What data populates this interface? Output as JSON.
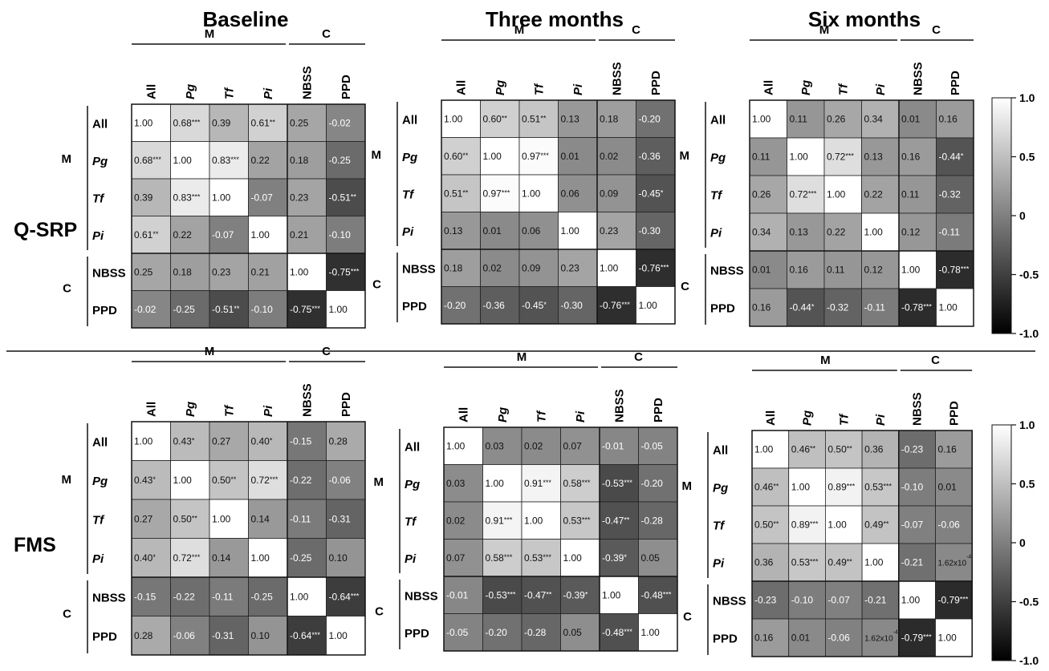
{
  "titles": [
    "Baseline",
    "Three months",
    "Six months"
  ],
  "row_labels": [
    "Q-SRP",
    "FMS"
  ],
  "variables": [
    "All",
    "Pg",
    "Tf",
    "Pi",
    "NBSS",
    "PPD"
  ],
  "italic_variables": [
    "Pg",
    "Tf",
    "Pi"
  ],
  "group_labels": {
    "microbiome": "M",
    "clinical": "C"
  },
  "colorbar": {
    "ticks": [
      "1.0",
      "0.5",
      "0",
      "-0.5",
      "-1.0"
    ],
    "range": [
      -1.0,
      1.0
    ],
    "colors": {
      "low": "#000000",
      "high": "#ffffff"
    }
  },
  "chart_data": [
    {
      "type": "heatmap",
      "group": "Q-SRP",
      "title": "Baseline",
      "rows": [
        "All",
        "Pg",
        "Tf",
        "Pi",
        "NBSS",
        "PPD"
      ],
      "columns": [
        "All",
        "Pg",
        "Tf",
        "Pi",
        "NBSS",
        "PPD"
      ],
      "values": [
        [
          1.0,
          0.68,
          0.39,
          0.61,
          0.25,
          -0.02
        ],
        [
          0.68,
          1.0,
          0.83,
          0.22,
          0.18,
          -0.25
        ],
        [
          0.39,
          0.83,
          1.0,
          -0.07,
          0.23,
          -0.51
        ],
        [
          0.61,
          0.22,
          -0.07,
          1.0,
          0.21,
          -0.1
        ],
        [
          0.25,
          0.18,
          0.23,
          0.21,
          1.0,
          -0.75
        ],
        [
          -0.02,
          -0.25,
          -0.51,
          -0.1,
          -0.75,
          1.0
        ]
      ],
      "labels": [
        [
          "1.00",
          "0.68",
          "0.39",
          "0.61",
          "0.25",
          "-0.02"
        ],
        [
          "0.68",
          "1.00",
          "0.83",
          "0.22",
          "0.18",
          "-0.25"
        ],
        [
          "0.39",
          "0.83",
          "1.00",
          "-0.07",
          "0.23",
          "-0.51"
        ],
        [
          "0.61",
          "0.22",
          "-0.07",
          "1.00",
          "0.21",
          "-0.10"
        ],
        [
          "0.25",
          "0.18",
          "0.23",
          "0.21",
          "1.00",
          "-0.75"
        ],
        [
          "-0.02",
          "-0.25",
          "-0.51",
          "-0.10",
          "-0.75",
          "1.00"
        ]
      ],
      "stars": [
        [
          "",
          "***",
          "",
          "**",
          "",
          ""
        ],
        [
          "***",
          "",
          "***",
          "",
          "",
          ""
        ],
        [
          "",
          "***",
          "",
          "",
          "",
          "**"
        ],
        [
          "**",
          "",
          "",
          "",
          "",
          ""
        ],
        [
          "",
          "",
          "",
          "",
          "",
          "***"
        ],
        [
          "",
          "",
          "**",
          "",
          "***",
          ""
        ]
      ]
    },
    {
      "type": "heatmap",
      "group": "Q-SRP",
      "title": "Three months",
      "rows": [
        "All",
        "Pg",
        "Tf",
        "Pi",
        "NBSS",
        "PPD"
      ],
      "columns": [
        "All",
        "Pg",
        "Tf",
        "Pi",
        "NBSS",
        "PPD"
      ],
      "values": [
        [
          1.0,
          0.6,
          0.51,
          0.13,
          0.18,
          -0.2
        ],
        [
          0.6,
          1.0,
          0.97,
          0.01,
          0.02,
          -0.36
        ],
        [
          0.51,
          0.97,
          1.0,
          0.06,
          0.09,
          -0.45
        ],
        [
          0.13,
          0.01,
          0.06,
          1.0,
          0.23,
          -0.3
        ],
        [
          0.18,
          0.02,
          0.09,
          0.23,
          1.0,
          -0.76
        ],
        [
          -0.2,
          -0.36,
          -0.45,
          -0.3,
          -0.76,
          1.0
        ]
      ],
      "labels": [
        [
          "1.00",
          "0.60",
          "0.51",
          "0.13",
          "0.18",
          "-0.20"
        ],
        [
          "0.60",
          "1.00",
          "0.97",
          "0.01",
          "0.02",
          "-0.36"
        ],
        [
          "0.51",
          "0.97",
          "1.00",
          "0.06",
          "0.09",
          "-0.45"
        ],
        [
          "0.13",
          "0.01",
          "0.06",
          "1.00",
          "0.23",
          "-0.30"
        ],
        [
          "0.18",
          "0.02",
          "0.09",
          "0.23",
          "1.00",
          "-0.76"
        ],
        [
          "-0.20",
          "-0.36",
          "-0.45",
          "-0.30",
          "-0.76",
          "1.00"
        ]
      ],
      "stars": [
        [
          "",
          "**",
          "**",
          "",
          "",
          ""
        ],
        [
          "**",
          "",
          "***",
          "",
          "",
          ""
        ],
        [
          "**",
          "***",
          "",
          "",
          "",
          "*"
        ],
        [
          "",
          "",
          "",
          "",
          "",
          ""
        ],
        [
          "",
          "",
          "",
          "",
          "",
          "***"
        ],
        [
          "",
          "",
          "*",
          "",
          "***",
          ""
        ]
      ]
    },
    {
      "type": "heatmap",
      "group": "Q-SRP",
      "title": "Six months",
      "rows": [
        "All",
        "Pg",
        "Tf",
        "Pi",
        "NBSS",
        "PPD"
      ],
      "columns": [
        "All",
        "Pg",
        "Tf",
        "Pi",
        "NBSS",
        "PPD"
      ],
      "values": [
        [
          1.0,
          0.11,
          0.26,
          0.34,
          0.01,
          0.16
        ],
        [
          0.11,
          1.0,
          0.72,
          0.13,
          0.16,
          -0.44
        ],
        [
          0.26,
          0.72,
          1.0,
          0.22,
          0.11,
          -0.32
        ],
        [
          0.34,
          0.13,
          0.22,
          1.0,
          0.12,
          -0.11
        ],
        [
          0.01,
          0.16,
          0.11,
          0.12,
          1.0,
          -0.78
        ],
        [
          0.16,
          -0.44,
          -0.32,
          -0.11,
          -0.78,
          1.0
        ]
      ],
      "labels": [
        [
          "1.00",
          "0.11",
          "0.26",
          "0.34",
          "0.01",
          "0.16"
        ],
        [
          "0.11",
          "1.00",
          "0.72",
          "0.13",
          "0.16",
          "-0.44"
        ],
        [
          "0.26",
          "0.72",
          "1.00",
          "0.22",
          "0.11",
          "-0.32"
        ],
        [
          "0.34",
          "0.13",
          "0.22",
          "1.00",
          "0.12",
          "-0.11"
        ],
        [
          "0.01",
          "0.16",
          "0.11",
          "0.12",
          "1.00",
          "-0.78"
        ],
        [
          "0.16",
          "-0.44",
          "-0.32",
          "-0.11",
          "-0.78",
          "1.00"
        ]
      ],
      "stars": [
        [
          "",
          "",
          "",
          "",
          "",
          ""
        ],
        [
          "",
          "",
          "***",
          "",
          "",
          "*"
        ],
        [
          "",
          "***",
          "",
          "",
          "",
          ""
        ],
        [
          "",
          "",
          "",
          "",
          "",
          ""
        ],
        [
          "",
          "",
          "",
          "",
          "",
          "***"
        ],
        [
          "",
          "*",
          "",
          "",
          "***",
          ""
        ]
      ]
    },
    {
      "type": "heatmap",
      "group": "FMS",
      "title": "Baseline",
      "rows": [
        "All",
        "Pg",
        "Tf",
        "Pi",
        "NBSS",
        "PPD"
      ],
      "columns": [
        "All",
        "Pg",
        "Tf",
        "Pi",
        "NBSS",
        "PPD"
      ],
      "values": [
        [
          1.0,
          0.43,
          0.27,
          0.4,
          -0.15,
          0.28
        ],
        [
          0.43,
          1.0,
          0.5,
          0.72,
          -0.22,
          -0.06
        ],
        [
          0.27,
          0.5,
          1.0,
          0.14,
          -0.11,
          -0.31
        ],
        [
          0.4,
          0.72,
          0.14,
          1.0,
          -0.25,
          0.1
        ],
        [
          -0.15,
          -0.22,
          -0.11,
          -0.25,
          1.0,
          -0.64
        ],
        [
          0.28,
          -0.06,
          -0.31,
          0.1,
          -0.64,
          1.0
        ]
      ],
      "labels": [
        [
          "1.00",
          "0.43",
          "0.27",
          "0.40",
          "-0.15",
          "0.28"
        ],
        [
          "0.43",
          "1.00",
          "0.50",
          "0.72",
          "-0.22",
          "-0.06"
        ],
        [
          "0.27",
          "0.50",
          "1.00",
          "0.14",
          "-0.11",
          "-0.31"
        ],
        [
          "0.40",
          "0.72",
          "0.14",
          "1.00",
          "-0.25",
          "0.10"
        ],
        [
          "-0.15",
          "-0.22",
          "-0.11",
          "-0.25",
          "1.00",
          "-0.64"
        ],
        [
          "0.28",
          "-0.06",
          "-0.31",
          "0.10",
          "-0.64",
          "1.00"
        ]
      ],
      "stars": [
        [
          "",
          "*",
          "",
          "*",
          "",
          ""
        ],
        [
          "*",
          "",
          "**",
          "***",
          "",
          ""
        ],
        [
          "",
          "**",
          "",
          "",
          "",
          ""
        ],
        [
          "*",
          "***",
          "",
          "",
          "",
          ""
        ],
        [
          "",
          "",
          "",
          "",
          "",
          "***"
        ],
        [
          "",
          "",
          "",
          "",
          "***",
          ""
        ]
      ]
    },
    {
      "type": "heatmap",
      "group": "FMS",
      "title": "Three months",
      "rows": [
        "All",
        "Pg",
        "Tf",
        "Pi",
        "NBSS",
        "PPD"
      ],
      "columns": [
        "All",
        "Pg",
        "Tf",
        "Pi",
        "NBSS",
        "PPD"
      ],
      "values": [
        [
          1.0,
          0.03,
          0.02,
          0.07,
          -0.01,
          -0.05
        ],
        [
          0.03,
          1.0,
          0.91,
          0.58,
          -0.53,
          -0.2
        ],
        [
          0.02,
          0.91,
          1.0,
          0.53,
          -0.47,
          -0.28
        ],
        [
          0.07,
          0.58,
          0.53,
          1.0,
          -0.39,
          0.05
        ],
        [
          -0.01,
          -0.53,
          -0.47,
          -0.39,
          1.0,
          -0.48
        ],
        [
          -0.05,
          -0.2,
          -0.28,
          0.05,
          -0.48,
          1.0
        ]
      ],
      "labels": [
        [
          "1.00",
          "0.03",
          "0.02",
          "0.07",
          "-0.01",
          "-0.05"
        ],
        [
          "0.03",
          "1.00",
          "0.91",
          "0.58",
          "-0.53",
          "-0.20"
        ],
        [
          "0.02",
          "0.91",
          "1.00",
          "0.53",
          "-0.47",
          "-0.28"
        ],
        [
          "0.07",
          "0.58",
          "0.53",
          "1.00",
          "-0.39",
          "0.05"
        ],
        [
          "-0.01",
          "-0.53",
          "-0.47",
          "-0.39",
          "1.00",
          "-0.48"
        ],
        [
          "-0.05",
          "-0.20",
          "-0.28",
          "0.05",
          "-0.48",
          "1.00"
        ]
      ],
      "stars": [
        [
          "",
          "",
          "",
          "",
          "",
          ""
        ],
        [
          "",
          "",
          "***",
          "***",
          "***",
          ""
        ],
        [
          "",
          "***",
          "",
          "***",
          "**",
          ""
        ],
        [
          "",
          "***",
          "***",
          "",
          "*",
          ""
        ],
        [
          "",
          "***",
          "**",
          "*",
          "",
          "***"
        ],
        [
          "",
          "",
          "",
          "",
          "***",
          ""
        ]
      ]
    },
    {
      "type": "heatmap",
      "group": "FMS",
      "title": "Six months",
      "rows": [
        "All",
        "Pg",
        "Tf",
        "Pi",
        "NBSS",
        "PPD"
      ],
      "columns": [
        "All",
        "Pg",
        "Tf",
        "Pi",
        "NBSS",
        "PPD"
      ],
      "values": [
        [
          1.0,
          0.46,
          0.5,
          0.36,
          -0.23,
          0.16
        ],
        [
          0.46,
          1.0,
          0.89,
          0.53,
          -0.1,
          0.01
        ],
        [
          0.5,
          0.89,
          1.0,
          0.49,
          -0.07,
          -0.06
        ],
        [
          0.36,
          0.53,
          0.49,
          1.0,
          -0.21,
          0.000162
        ],
        [
          -0.23,
          -0.1,
          -0.07,
          -0.21,
          1.0,
          -0.79
        ],
        [
          0.16,
          0.01,
          -0.06,
          0.000162,
          -0.79,
          1.0
        ]
      ],
      "labels": [
        [
          "1.00",
          "0.46",
          "0.50",
          "0.36",
          "-0.23",
          "0.16"
        ],
        [
          "0.46",
          "1.00",
          "0.89",
          "0.53",
          "-0.10",
          "0.01"
        ],
        [
          "0.50",
          "0.89",
          "1.00",
          "0.49",
          "-0.07",
          "-0.06"
        ],
        [
          "0.36",
          "0.53",
          "0.49",
          "1.00",
          "-0.21",
          "1.62x10"
        ],
        [
          "-0.23",
          "-0.10",
          "-0.07",
          "-0.21",
          "1.00",
          "-0.79"
        ],
        [
          "0.16",
          "0.01",
          "-0.06",
          "1.62x10",
          "-0.79",
          "1.00"
        ]
      ],
      "exponents": [
        [
          "",
          "",
          "",
          "",
          "",
          ""
        ],
        [
          "",
          "",
          "",
          "",
          "",
          ""
        ],
        [
          "",
          "",
          "",
          "",
          "",
          ""
        ],
        [
          "",
          "",
          "",
          "",
          "",
          "-4"
        ],
        [
          "",
          "",
          "",
          "",
          "",
          ""
        ],
        [
          "",
          "",
          "",
          "-4",
          "",
          ""
        ]
      ],
      "stars": [
        [
          "",
          "**",
          "**",
          "",
          "",
          ""
        ],
        [
          "**",
          "",
          "***",
          "***",
          "",
          ""
        ],
        [
          "**",
          "***",
          "",
          "**",
          "",
          ""
        ],
        [
          "",
          "***",
          "**",
          "",
          "",
          ""
        ],
        [
          "",
          "",
          "",
          "",
          "",
          "***"
        ],
        [
          "",
          "",
          "",
          "",
          "***",
          ""
        ]
      ]
    }
  ]
}
